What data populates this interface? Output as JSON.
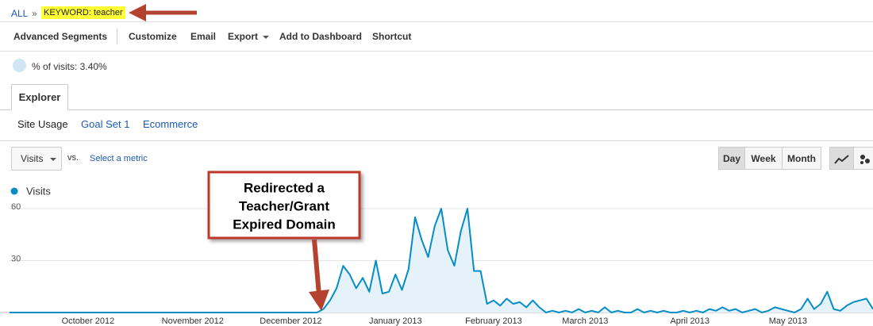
{
  "breadcrumb": {
    "root": "ALL",
    "separator": "»",
    "current": "KEYWORD: teacher"
  },
  "toolbar": [
    "Advanced Segments",
    "Customize",
    "Email",
    "Export",
    "Add to Dashboard",
    "Shortcut"
  ],
  "segment": "% of visits: 3.40%",
  "tabs": [
    "Explorer"
  ],
  "subtabs": [
    "Site Usage",
    "Goal Set 1",
    "Ecommerce"
  ],
  "controls": {
    "metric": "Visits",
    "vs": "vs.",
    "compare": "Select a metric",
    "periods": [
      "Day",
      "Week",
      "Month"
    ]
  },
  "chart_data": {
    "type": "area",
    "annotation": [
      "Redirected a",
      "Teacher/Grant",
      "Expired Domain"
    ],
    "categories": [
      null,
      null,
      null,
      null,
      null,
      null,
      null,
      null,
      null,
      null,
      null,
      null,
      "October 2012",
      null,
      null,
      null,
      null,
      null,
      null,
      null,
      null,
      null,
      null,
      null,
      null,
      null,
      null,
      null,
      "November 2012",
      null,
      null,
      null,
      null,
      null,
      null,
      null,
      null,
      null,
      null,
      null,
      null,
      null,
      null,
      "December 2012",
      null,
      null,
      null,
      null,
      null,
      null,
      null,
      null,
      null,
      null,
      null,
      null,
      null,
      null,
      null,
      "January 2013",
      null,
      null,
      null,
      null,
      null,
      null,
      null,
      null,
      null,
      null,
      null,
      null,
      null,
      null,
      "February 2013",
      null,
      null,
      null,
      null,
      null,
      null,
      null,
      null,
      null,
      null,
      null,
      null,
      null,
      "March 2013",
      null,
      null,
      null,
      null,
      null,
      null,
      null,
      null,
      null,
      null,
      null,
      null,
      null,
      null,
      null,
      "April 2013",
      null,
      null,
      null,
      null,
      null,
      null,
      null,
      null,
      null,
      null,
      null,
      null,
      null,
      null,
      "May 2013",
      null,
      null,
      null,
      null,
      null,
      null,
      null,
      null,
      null,
      null,
      null,
      null,
      null
    ],
    "series": [
      {
        "name": "Visits",
        "color": "#058dc7",
        "values": [
          0,
          0,
          0,
          0,
          0,
          0,
          0,
          0,
          0,
          0,
          0,
          0,
          0,
          0,
          0,
          0,
          0,
          0,
          0,
          0,
          0,
          0,
          0,
          0,
          0,
          0,
          0,
          0,
          0,
          0,
          0,
          0,
          0,
          0,
          0,
          0,
          0,
          0,
          0,
          0,
          0,
          0,
          0,
          0,
          0,
          0,
          0,
          0,
          2,
          7,
          14,
          27,
          22,
          14,
          20,
          12,
          30,
          11,
          12,
          22,
          13,
          25,
          55,
          42,
          32,
          50,
          60,
          36,
          27,
          47,
          60,
          24,
          24,
          5,
          7,
          4,
          8,
          5,
          6,
          3,
          7,
          3,
          0,
          1,
          0,
          1,
          0,
          2,
          0,
          1,
          0,
          3,
          0,
          1,
          0,
          0,
          2,
          0,
          1,
          0,
          1,
          0,
          0,
          1,
          0,
          1,
          0,
          2,
          1,
          3,
          1,
          2,
          0,
          1,
          2,
          0,
          1,
          3,
          2,
          1,
          0,
          2,
          8,
          2,
          5,
          12,
          2,
          1,
          4,
          6,
          7,
          8,
          2
        ]
      }
    ],
    "ylim": [
      0,
      60
    ],
    "yticks": [
      30,
      60
    ],
    "grid": true
  }
}
